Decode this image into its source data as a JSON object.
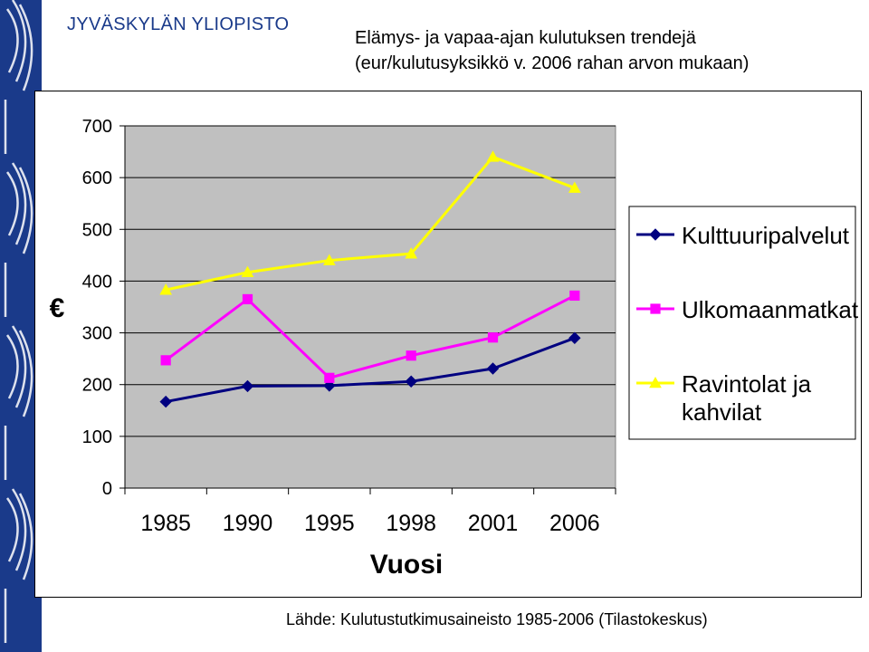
{
  "header": {
    "university": "JYVÄSKYLÄN YLIOPISTO",
    "title_line1": "Elämys- ja vapaa-ajan kulutuksen trendejä",
    "title_line2": "(eur/kulutusyksikkö v. 2006 rahan arvon mukaan)"
  },
  "source": "Lähde: Kulutustutkimusaineisto 1985-2006 (Tilastokeskus)",
  "colors": {
    "brand_blue": "#1a3a8a",
    "plot_bg": "#c0c0c0"
  },
  "chart_data": {
    "type": "line",
    "categories": [
      "1985",
      "1990",
      "1995",
      "1998",
      "2001",
      "2006"
    ],
    "xlabel": "Vuosi",
    "ylabel": "€",
    "ylim": [
      0,
      700
    ],
    "yticks": [
      0,
      100,
      200,
      300,
      400,
      500,
      600,
      700
    ],
    "grid": true,
    "legend_position": "right",
    "series": [
      {
        "name": "Kulttuuripalvelut",
        "color": "#000080",
        "marker": "diamond",
        "values": [
          167,
          197,
          198,
          206,
          231,
          290
        ]
      },
      {
        "name": "Ulkomaanmatkat",
        "color": "#ff00ff",
        "marker": "square",
        "values": [
          247,
          365,
          213,
          256,
          291,
          372
        ]
      },
      {
        "name": "Ravintolat ja kahvilat",
        "color": "#ffff00",
        "marker": "triangle",
        "values": [
          383,
          417,
          440,
          453,
          640,
          580
        ]
      }
    ]
  }
}
